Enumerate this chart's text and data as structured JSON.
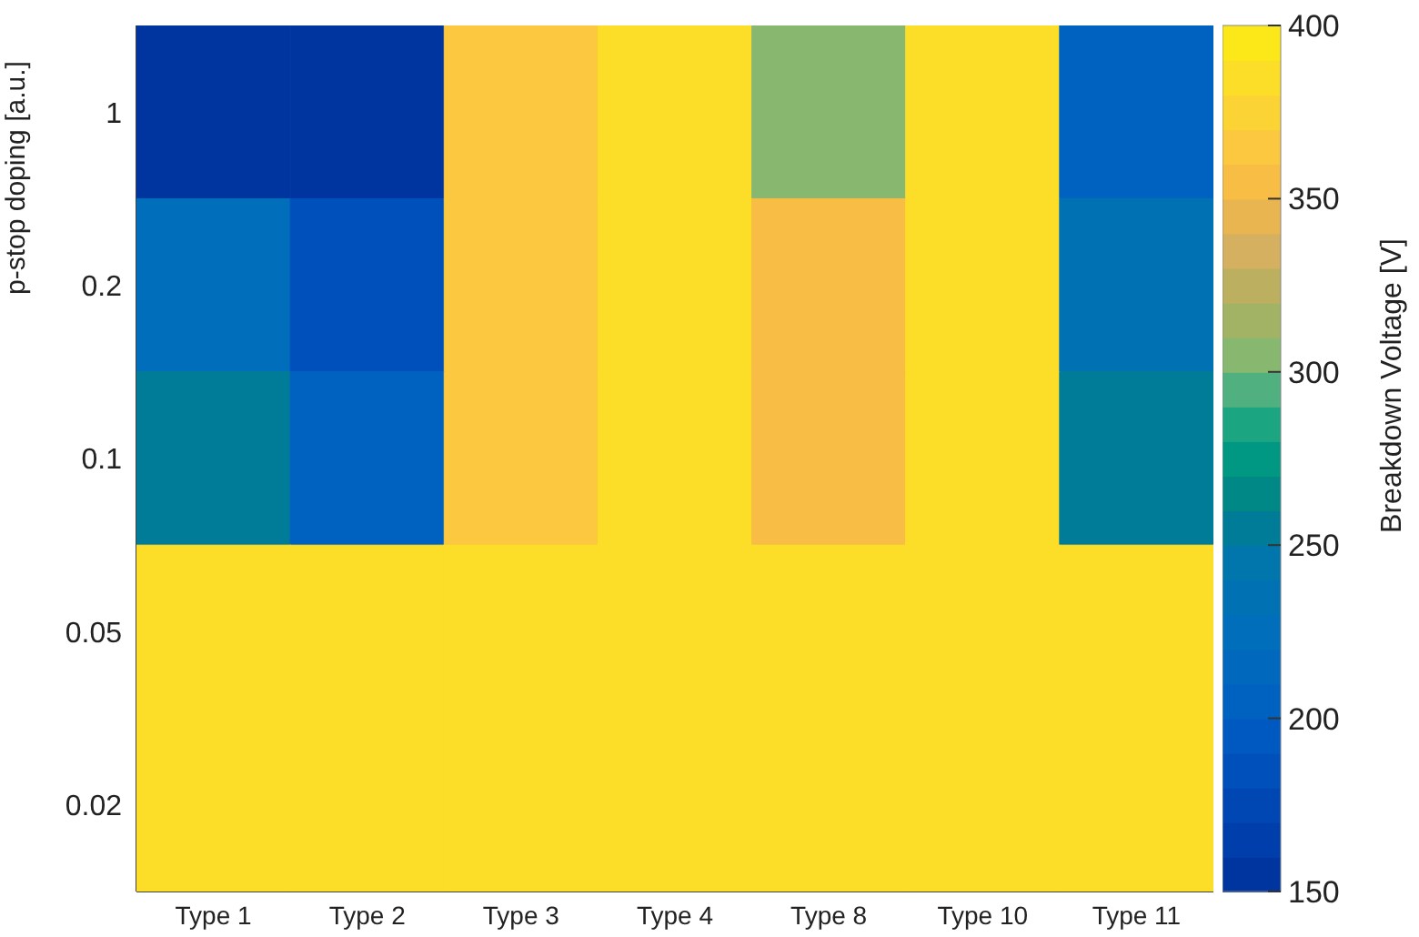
{
  "chart_data": {
    "type": "heatmap",
    "ylabel": "p-stop doping  [a.u.]",
    "clabel": "Breakdown Voltage  [V]",
    "categories": [
      "Type 1",
      "Type 2",
      "Type 3",
      "Type 4",
      "Type 8",
      "Type 10",
      "Type 11"
    ],
    "y_categories": [
      "1",
      "0.2",
      "0.1",
      "0.05",
      "0.02"
    ],
    "cells": [
      [
        155,
        155,
        365,
        385,
        305,
        385,
        205
      ],
      [
        225,
        185,
        365,
        385,
        355,
        385,
        235
      ],
      [
        255,
        205,
        365,
        385,
        355,
        385,
        255
      ],
      [
        385,
        385,
        385,
        385,
        385,
        385,
        385
      ],
      [
        385,
        385,
        385,
        385,
        385,
        385,
        385
      ]
    ],
    "clim": [
      150,
      400
    ],
    "cticks": [
      150,
      200,
      250,
      300,
      350,
      400
    ]
  }
}
